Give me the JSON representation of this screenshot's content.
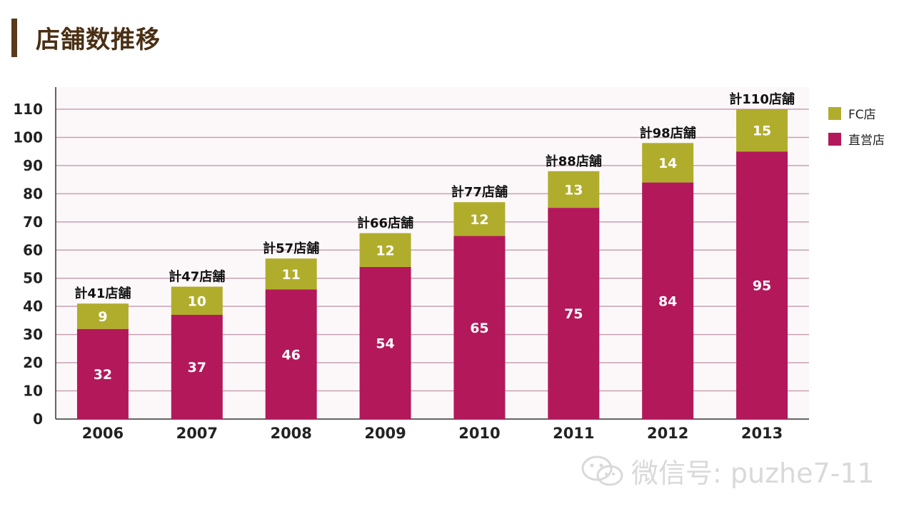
{
  "title": "店舗数推移",
  "colors": {
    "fc": "#b0ad2c",
    "direct": "#b3185a",
    "grid": "#c9a0b2",
    "plot_bg": "#fcf8fa"
  },
  "chart_data": {
    "type": "bar",
    "stacked": true,
    "categories": [
      "2006",
      "2007",
      "2008",
      "2009",
      "2010",
      "2011",
      "2012",
      "2013"
    ],
    "series": [
      {
        "name": "直営店",
        "values": [
          32,
          37,
          46,
          54,
          65,
          75,
          84,
          95
        ]
      },
      {
        "name": "FC店",
        "values": [
          9,
          10,
          11,
          12,
          12,
          13,
          14,
          15
        ]
      }
    ],
    "totals_labels": [
      "計41店舗",
      "計47店舗",
      "計57店舗",
      "計66店舗",
      "計77店舗",
      "計88店舗",
      "計98店舗",
      "計110店舗"
    ],
    "y_ticks": [
      "0",
      "10",
      "20",
      "30",
      "40",
      "50",
      "60",
      "70",
      "80",
      "90",
      "100",
      "110"
    ],
    "ylim": [
      0,
      110
    ],
    "grid": true,
    "legend": {
      "position": "right",
      "items": [
        "FC店",
        "直営店"
      ]
    }
  },
  "watermark": {
    "text": "微信号: puzhe7-11",
    "icon": "wechat-icon"
  }
}
